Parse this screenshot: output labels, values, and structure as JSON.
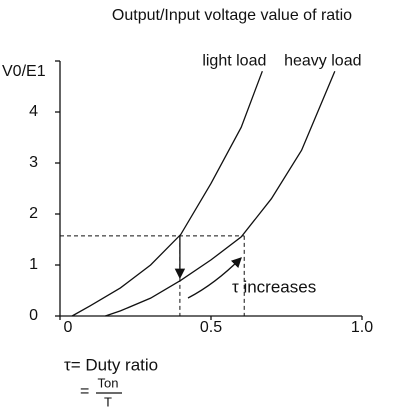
{
  "chart_data": {
    "type": "line",
    "title": "Output/Input voltage value of ratio",
    "y_label": "V0/E1",
    "xlim": [
      0,
      1
    ],
    "xticks": [
      0,
      0.5,
      {
        "value": 1,
        "label": "1.0"
      }
    ],
    "ylim": [
      0,
      5
    ],
    "yticks": [
      0,
      1,
      2,
      3,
      4
    ],
    "series": [
      {
        "name": "light load",
        "color": "#111111",
        "x": [
          0.04,
          0.1,
          0.2,
          0.3,
          0.4,
          0.5,
          0.6,
          0.67
        ],
        "values": [
          0,
          0.2,
          0.55,
          1.0,
          1.6,
          2.6,
          3.7,
          4.8
        ]
      },
      {
        "name": "heavy load",
        "color": "#111111",
        "x": [
          0.15,
          0.2,
          0.3,
          0.4,
          0.5,
          0.6,
          0.7,
          0.8,
          0.91
        ],
        "values": [
          0,
          0.1,
          0.35,
          0.7,
          1.1,
          1.55,
          2.3,
          3.25,
          4.8
        ]
      }
    ],
    "reference": {
      "y": 1.57,
      "x": [
        0.397,
        0.61
      ],
      "arrow_end_y": 0.75
    },
    "annotations": {
      "increase": "τ increases",
      "duty": "τ= Duty ratio",
      "equals": "=",
      "numerator": "Ton",
      "denominator": "T"
    }
  }
}
